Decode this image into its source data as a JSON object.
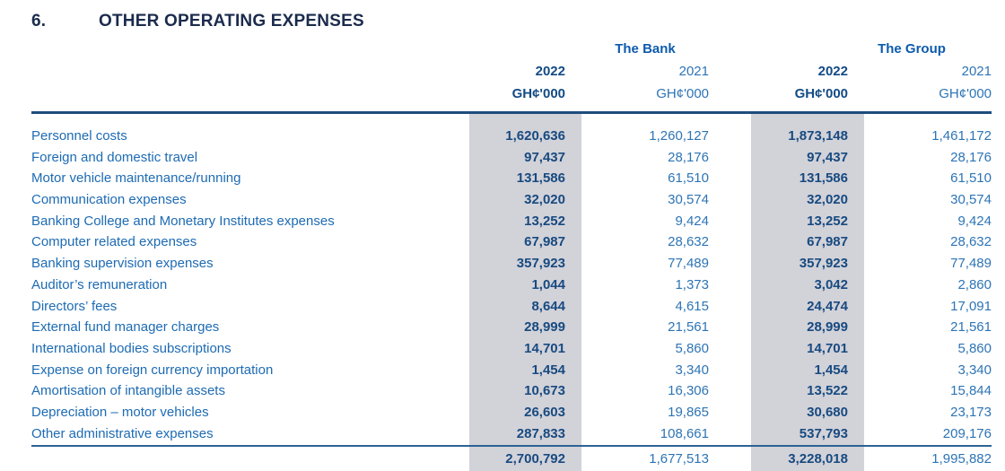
{
  "page": {
    "section_number": "6.",
    "title": "OTHER OPERATING EXPENSES"
  },
  "colors": {
    "title_navy": "#1b2b4d",
    "header_blue": "#0d5bad",
    "bold_value_blue": "#174a80",
    "regular_value_blue": "#2d74b5",
    "label_blue": "#1d6bb3",
    "rule_blue": "#1e4d7c",
    "highlight_column_gray": "#d2d2d9"
  },
  "table": {
    "group_headers": {
      "bank": "The Bank",
      "group": "The Group"
    },
    "column_headers": {
      "bank_2022_year": "2022",
      "bank_2022_unit": "GH¢'000",
      "bank_2021_year": "2021",
      "bank_2021_unit": "GH¢'000",
      "group_2022_year": "2022",
      "group_2022_unit": "GH¢'000",
      "group_2021_year": "2021",
      "group_2021_unit": "GH¢'000"
    },
    "rows": [
      {
        "label": "Personnel costs",
        "bank_2022": "1,620,636",
        "bank_2021": "1,260,127",
        "group_2022": "1,873,148",
        "group_2021": "1,461,172"
      },
      {
        "label": "Foreign and domestic travel",
        "bank_2022": "97,437",
        "bank_2021": "28,176",
        "group_2022": "97,437",
        "group_2021": "28,176"
      },
      {
        "label": "Motor vehicle maintenance/running",
        "bank_2022": "131,586",
        "bank_2021": "61,510",
        "group_2022": "131,586",
        "group_2021": "61,510"
      },
      {
        "label": "Communication expenses",
        "bank_2022": "32,020",
        "bank_2021": "30,574",
        "group_2022": "32,020",
        "group_2021": "30,574"
      },
      {
        "label": "Banking College and Monetary Institutes expenses",
        "bank_2022": "13,252",
        "bank_2021": "9,424",
        "group_2022": "13,252",
        "group_2021": "9,424"
      },
      {
        "label": "Computer related expenses",
        "bank_2022": "67,987",
        "bank_2021": "28,632",
        "group_2022": "67,987",
        "group_2021": "28,632"
      },
      {
        "label": "Banking supervision expenses",
        "bank_2022": "357,923",
        "bank_2021": "77,489",
        "group_2022": "357,923",
        "group_2021": "77,489"
      },
      {
        "label": "Auditor’s remuneration",
        "bank_2022": "1,044",
        "bank_2021": "1,373",
        "group_2022": "3,042",
        "group_2021": "2,860"
      },
      {
        "label": "Directors’ fees",
        "bank_2022": "8,644",
        "bank_2021": "4,615",
        "group_2022": "24,474",
        "group_2021": "17,091"
      },
      {
        "label": "External fund manager charges",
        "bank_2022": "28,999",
        "bank_2021": "21,561",
        "group_2022": "28,999",
        "group_2021": "21,561"
      },
      {
        "label": "International bodies subscriptions",
        "bank_2022": "14,701",
        "bank_2021": "5,860",
        "group_2022": "14,701",
        "group_2021": "5,860"
      },
      {
        "label": "Expense on foreign currency importation",
        "bank_2022": "1,454",
        "bank_2021": "3,340",
        "group_2022": "1,454",
        "group_2021": "3,340"
      },
      {
        "label": "Amortisation of intangible assets",
        "bank_2022": "10,673",
        "bank_2021": "16,306",
        "group_2022": "13,522",
        "group_2021": "15,844"
      },
      {
        "label": "Depreciation – motor vehicles",
        "bank_2022": "26,603",
        "bank_2021": "19,865",
        "group_2022": "30,680",
        "group_2021": "23,173"
      },
      {
        "label": "Other administrative expenses",
        "bank_2022": "287,833",
        "bank_2021": "108,661",
        "group_2022": "537,793",
        "group_2021": "209,176"
      }
    ],
    "total": {
      "bank_2022": "2,700,792",
      "bank_2021": "1,677,513",
      "group_2022": "3,228,018",
      "group_2021": "1,995,882"
    }
  }
}
